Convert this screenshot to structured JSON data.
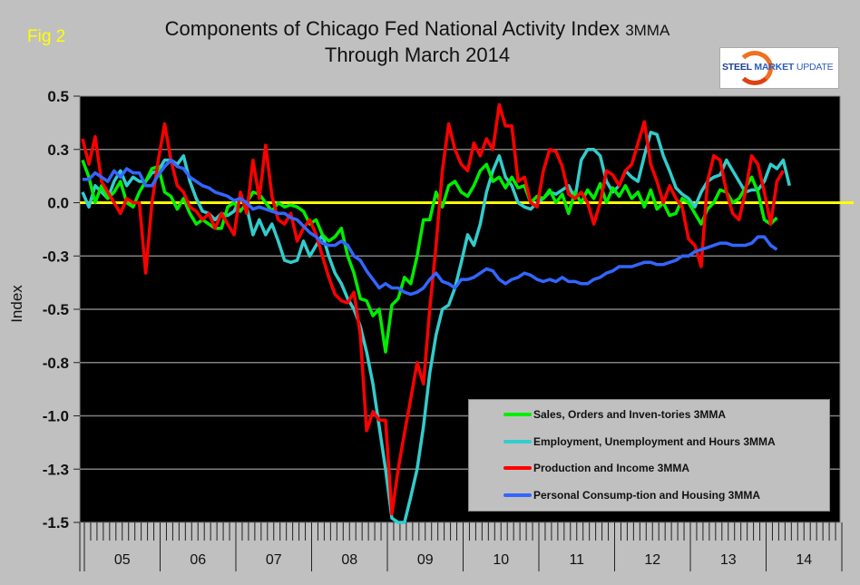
{
  "figure_label": "Fig 2",
  "title_main": "Components of Chicago Fed National Activity Index",
  "title_suffix": "3MMA",
  "title_line2": "Through March 2014",
  "logo": {
    "word1": "STEEL",
    "word2": "MARKET",
    "word3": "UPDATE"
  },
  "chart_data": {
    "type": "line",
    "title": "Components of Chicago Fed National Activity Index 3MMA Through March 2014",
    "xlabel": "",
    "ylabel": "Index",
    "ylim": [
      -1.5,
      0.5
    ],
    "y_ticks": [
      0.5,
      0.25,
      0.0,
      -0.25,
      -0.5,
      -0.75,
      -1.0,
      -1.25,
      -1.5
    ],
    "y_tick_labels": [
      "0.5",
      "0.3",
      "0.0",
      "-0.3",
      "-0.5",
      "-0.8",
      "-1.0",
      "-1.3",
      "-1.5"
    ],
    "x_start": "2005-01",
    "x_end": "2014-03",
    "x_frequency": "monthly",
    "x_categories": [
      "05",
      "06",
      "07",
      "08",
      "09",
      "10",
      "11",
      "12",
      "13",
      "14"
    ],
    "grid": true,
    "zero_line_color": "#ffff00",
    "plot_background": "#000000",
    "legend_position": "bottom-right",
    "series": [
      {
        "name": "Sales, Orders and Inven-tories 3MMA",
        "color": "#00ee00",
        "values": [
          0.2,
          0.12,
          0.0,
          0.08,
          0.02,
          0.05,
          0.1,
          0.0,
          -0.02,
          0.05,
          0.1,
          0.16,
          0.17,
          0.05,
          0.03,
          -0.03,
          0.02,
          -0.05,
          -0.1,
          -0.08,
          -0.1,
          -0.12,
          -0.12,
          -0.02,
          0.0,
          -0.04,
          0.0,
          0.05,
          0.04,
          0.0,
          -0.04,
          0.0,
          -0.02,
          -0.01,
          -0.02,
          -0.04,
          -0.1,
          -0.08,
          -0.15,
          -0.18,
          -0.16,
          -0.12,
          -0.25,
          -0.33,
          -0.45,
          -0.46,
          -0.53,
          -0.5,
          -0.7,
          -0.48,
          -0.45,
          -0.35,
          -0.38,
          -0.25,
          -0.08,
          -0.08,
          0.05,
          -0.02,
          0.08,
          0.1,
          0.05,
          0.03,
          0.08,
          0.15,
          0.18,
          0.1,
          0.12,
          0.07,
          0.12,
          0.07,
          0.08,
          0.0,
          0.03,
          0.02,
          0.06,
          0.0,
          0.04,
          -0.05,
          0.05,
          0.0,
          0.06,
          0.02,
          0.09,
          0.0,
          0.07,
          0.03,
          0.08,
          0.02,
          0.05,
          -0.02,
          0.06,
          -0.03,
          0.0,
          -0.06,
          -0.05,
          0.02,
          0.0,
          -0.05,
          -0.1,
          -0.03,
          0.0,
          0.06,
          0.05,
          0.0,
          0.02,
          0.07,
          0.12,
          0.05,
          -0.08,
          -0.1,
          -0.07
        ]
      },
      {
        "name": "Employment, Unemployment and Hours 3MMA",
        "color": "#33cccc",
        "values": [
          0.05,
          -0.02,
          0.08,
          0.05,
          0.02,
          0.1,
          0.15,
          0.08,
          0.12,
          0.1,
          0.1,
          0.14,
          0.15,
          0.2,
          0.2,
          0.18,
          0.22,
          0.1,
          0.02,
          -0.04,
          -0.05,
          -0.08,
          -0.05,
          -0.06,
          -0.04,
          0.02,
          -0.02,
          -0.15,
          -0.08,
          -0.15,
          -0.1,
          -0.18,
          -0.27,
          -0.28,
          -0.27,
          -0.18,
          -0.25,
          -0.2,
          -0.15,
          -0.25,
          -0.33,
          -0.38,
          -0.45,
          -0.5,
          -0.58,
          -0.7,
          -0.85,
          -1.05,
          -1.25,
          -1.48,
          -1.5,
          -1.5,
          -1.38,
          -1.25,
          -1.05,
          -0.8,
          -0.62,
          -0.5,
          -0.48,
          -0.4,
          -0.28,
          -0.15,
          -0.2,
          -0.1,
          0.05,
          0.15,
          0.22,
          0.12,
          0.08,
          0.0,
          -0.02,
          -0.03,
          0.0,
          0.02,
          0.05,
          0.04,
          0.06,
          0.08,
          0.02,
          0.2,
          0.25,
          0.25,
          0.22,
          0.1,
          0.05,
          0.08,
          0.15,
          0.12,
          0.1,
          0.22,
          0.33,
          0.32,
          0.22,
          0.15,
          0.07,
          0.04,
          0.02,
          -0.02,
          0.05,
          0.1,
          0.12,
          0.13,
          0.2,
          0.15,
          0.1,
          0.05,
          0.06,
          0.06,
          0.1,
          0.18,
          0.16,
          0.2,
          0.08
        ]
      },
      {
        "name": "Production and Income 3MMA",
        "color": "#ff0000",
        "values": [
          0.3,
          0.18,
          0.31,
          0.1,
          0.05,
          0.0,
          -0.05,
          0.02,
          0.0,
          0.0,
          -0.33,
          0.0,
          0.2,
          0.37,
          0.2,
          0.08,
          0.05,
          -0.02,
          -0.04,
          -0.08,
          -0.05,
          -0.12,
          -0.05,
          -0.1,
          -0.15,
          0.05,
          -0.05,
          0.2,
          0.02,
          0.27,
          0.03,
          -0.08,
          -0.1,
          -0.05,
          -0.18,
          -0.12,
          -0.08,
          -0.15,
          -0.25,
          -0.35,
          -0.43,
          -0.46,
          -0.47,
          -0.42,
          -0.62,
          -1.07,
          -0.98,
          -1.02,
          -1.02,
          -1.46,
          -1.25,
          -1.08,
          -0.92,
          -0.75,
          -0.85,
          -0.5,
          -0.2,
          0.15,
          0.37,
          0.25,
          0.18,
          0.15,
          0.28,
          0.22,
          0.3,
          0.25,
          0.46,
          0.36,
          0.36,
          0.1,
          0.12,
          0.0,
          -0.02,
          0.15,
          0.25,
          0.24,
          0.17,
          0.04,
          0.02,
          0.05,
          0.0,
          -0.1,
          0.0,
          0.15,
          0.13,
          0.08,
          0.15,
          0.18,
          0.28,
          0.38,
          0.18,
          0.1,
          0.0,
          0.08,
          0.02,
          -0.02,
          -0.17,
          -0.2,
          -0.3,
          0.1,
          0.22,
          0.2,
          0.05,
          -0.05,
          -0.08,
          0.05,
          0.22,
          0.18,
          0.05,
          -0.1,
          0.1,
          0.15
        ]
      },
      {
        "name": "Personal Consump-tion and Housing 3MMA",
        "color": "#3366ff",
        "values": [
          0.11,
          0.11,
          0.14,
          0.12,
          0.1,
          0.15,
          0.12,
          0.16,
          0.14,
          0.14,
          0.08,
          0.08,
          0.13,
          0.17,
          0.2,
          0.17,
          0.16,
          0.12,
          0.1,
          0.08,
          0.07,
          0.05,
          0.04,
          0.03,
          0.01,
          0.02,
          0.0,
          -0.03,
          -0.02,
          -0.03,
          -0.04,
          -0.05,
          -0.05,
          -0.07,
          -0.08,
          -0.11,
          -0.14,
          -0.16,
          -0.19,
          -0.2,
          -0.2,
          -0.18,
          -0.2,
          -0.25,
          -0.27,
          -0.32,
          -0.36,
          -0.4,
          -0.38,
          -0.4,
          -0.4,
          -0.42,
          -0.43,
          -0.42,
          -0.4,
          -0.36,
          -0.33,
          -0.37,
          -0.38,
          -0.4,
          -0.36,
          -0.36,
          -0.35,
          -0.33,
          -0.31,
          -0.32,
          -0.36,
          -0.38,
          -0.36,
          -0.35,
          -0.33,
          -0.34,
          -0.36,
          -0.37,
          -0.36,
          -0.37,
          -0.35,
          -0.37,
          -0.37,
          -0.38,
          -0.38,
          -0.36,
          -0.35,
          -0.33,
          -0.32,
          -0.3,
          -0.3,
          -0.3,
          -0.29,
          -0.28,
          -0.28,
          -0.29,
          -0.29,
          -0.28,
          -0.27,
          -0.25,
          -0.25,
          -0.23,
          -0.22,
          -0.21,
          -0.2,
          -0.19,
          -0.19,
          -0.2,
          -0.2,
          -0.2,
          -0.19,
          -0.16,
          -0.16,
          -0.2,
          -0.22
        ]
      }
    ]
  }
}
